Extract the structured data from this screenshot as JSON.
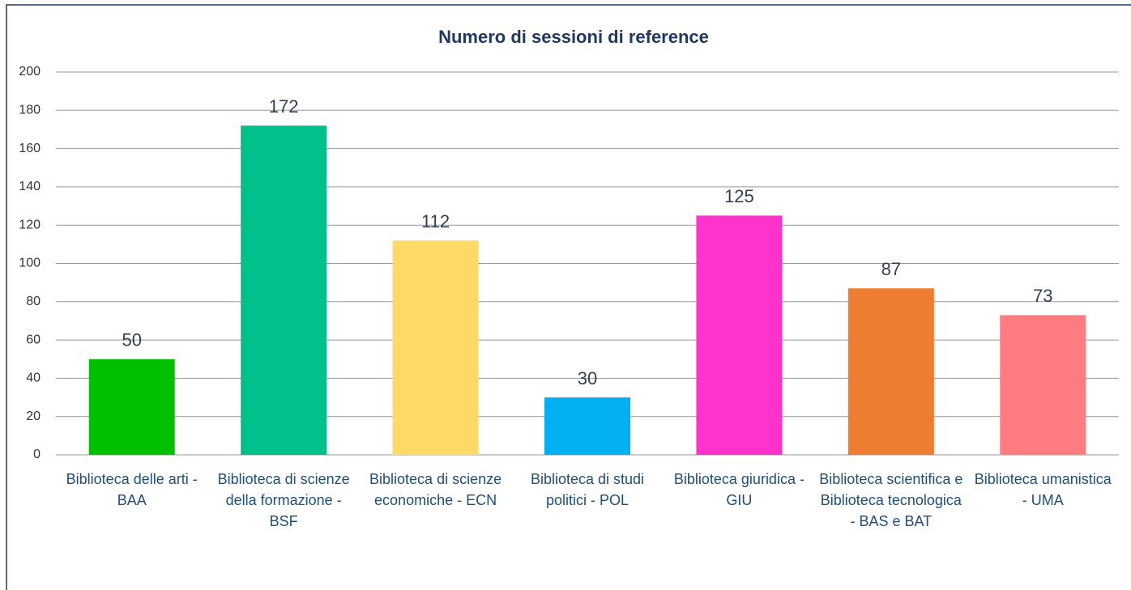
{
  "chart_data": {
    "type": "bar",
    "title": "Numero di sessioni di reference",
    "categories": [
      "Biblioteca delle arti - BAA",
      "Biblioteca di scienze della formazione - BSF",
      "Biblioteca di scienze economiche - ECN",
      "Biblioteca di studi politici - POL",
      "Biblioteca giuridica - GIU",
      "Biblioteca scientifica e Biblioteca tecnologica - BAS e BAT",
      "Biblioteca umanistica - UMA"
    ],
    "values": [
      50,
      172,
      112,
      30,
      125,
      87,
      73
    ],
    "colors": [
      "#00c000",
      "#00c08c",
      "#ffd966",
      "#00b0f0",
      "#ff33cc",
      "#ed7d31",
      "#ff7c80"
    ],
    "ylim": [
      0,
      200
    ],
    "yticks": [
      0,
      20,
      40,
      60,
      80,
      100,
      120,
      140,
      160,
      180,
      200
    ],
    "grid": true
  }
}
